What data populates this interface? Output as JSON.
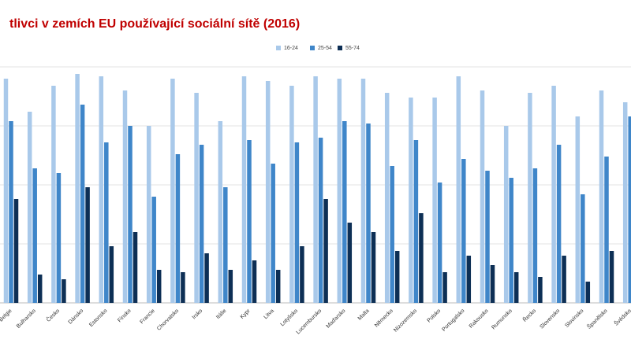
{
  "chart_data": {
    "type": "bar",
    "title": "tlivci v zemích EU používající sociální sítě  (2016)",
    "categories": [
      "Belgie",
      "Bulharsko",
      "Česko",
      "Dánsko",
      "Estonsko",
      "Finsko",
      "Francie",
      "Chorvatsko",
      "Irsko",
      "Itálie",
      "Kypr",
      "Litva",
      "Lotyšsko",
      "Lucembursko",
      "Maďarsko",
      "Malta",
      "Německo",
      "Nizozemsko",
      "Polsko",
      "Portugalsko",
      "Rakousko",
      "Rumunsko",
      "Řecko",
      "Slovensko",
      "Slovinsko",
      "Španělsko",
      "Švédsko"
    ],
    "series": [
      {
        "name": "16-24",
        "color": "#a9c9ea",
        "values": [
          95,
          81,
          92,
          97,
          96,
          90,
          75,
          95,
          89,
          77,
          96,
          94,
          92,
          96,
          95,
          95,
          89,
          87,
          87,
          96,
          90,
          75,
          89,
          92,
          79,
          90,
          85
        ]
      },
      {
        "name": "25-54",
        "color": "#3f86c9",
        "values": [
          77,
          57,
          55,
          84,
          68,
          75,
          45,
          63,
          67,
          49,
          69,
          59,
          68,
          70,
          77,
          76,
          58,
          69,
          51,
          61,
          56,
          53,
          57,
          67,
          46,
          62,
          79
        ]
      },
      {
        "name": "55-74",
        "color": "#0d2f55",
        "values": [
          44,
          12,
          10,
          49,
          24,
          30,
          14,
          13,
          21,
          14,
          18,
          14,
          24,
          44,
          34,
          30,
          22,
          38,
          13,
          20,
          16,
          13,
          11,
          20,
          9,
          22,
          null
        ]
      }
    ],
    "ylim": [
      0,
      100
    ],
    "yticks": [
      0,
      25,
      50,
      75,
      100
    ],
    "grid": true,
    "legend": "top"
  }
}
